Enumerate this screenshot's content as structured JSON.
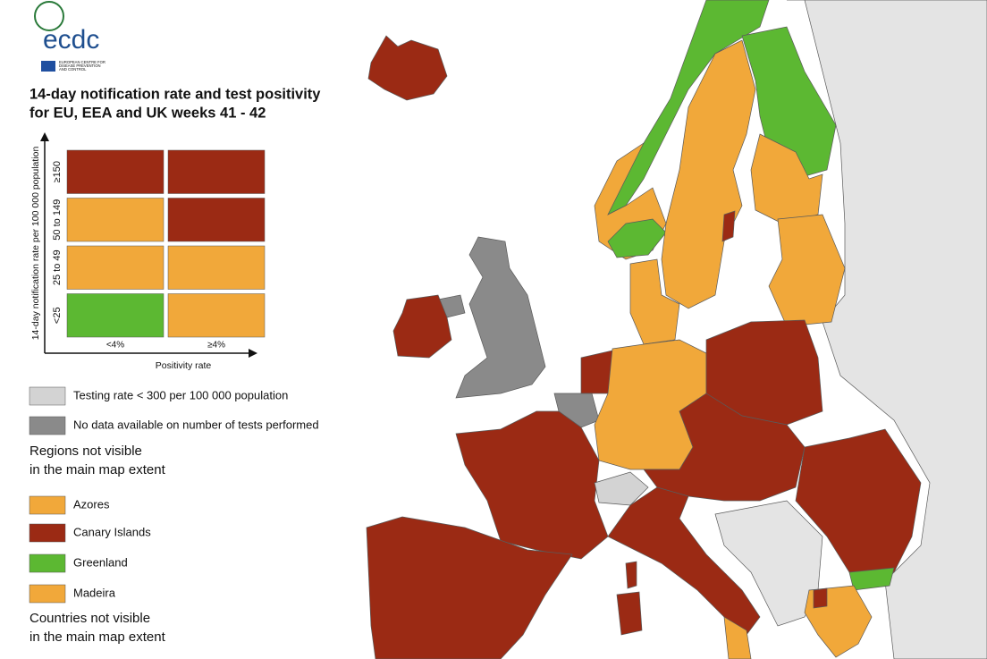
{
  "header": {
    "logo": "ecdc",
    "agency": [
      "EUROPEAN CENTRE FOR",
      "DISEASE PREVENTION",
      "AND CONTROL"
    ],
    "title": [
      "14-day notification rate and test positivity",
      "for EU, EEA and UK weeks 41 - 42"
    ]
  },
  "matrix": {
    "y_axis_label": "14-day notification rate per 100 000 population",
    "x_axis_label": "Positivity rate",
    "rows": [
      "≥150",
      "50 to 149",
      "25 to 49",
      "<25"
    ],
    "columns": [
      "<4%",
      "≥4%"
    ],
    "colors": [
      [
        "#9b2a14",
        "#9b2a14"
      ],
      [
        "#f1a83a",
        "#9b2a14"
      ],
      [
        "#f1a83a",
        "#f1a83a"
      ],
      [
        "#5cb832",
        "#f1a83a"
      ]
    ]
  },
  "legend": [
    {
      "label": "Testing rate < 300 per 100 000 population",
      "color": "#d3d3d3"
    },
    {
      "label": "No data available on number of tests performed",
      "color": "#8a8a8a"
    }
  ],
  "regions": {
    "heading": [
      "Regions not visible",
      "in the main map extent"
    ],
    "items": [
      {
        "label": "Azores",
        "color": "#f1a83a"
      },
      {
        "label": "Canary Islands",
        "color": "#9b2a14"
      },
      {
        "label": "Greenland",
        "color": "#5cb832"
      },
      {
        "label": "Madeira",
        "color": "#f1a83a"
      }
    ]
  },
  "countries_heading": [
    "Countries not visible",
    "in the main map extent"
  ]
}
